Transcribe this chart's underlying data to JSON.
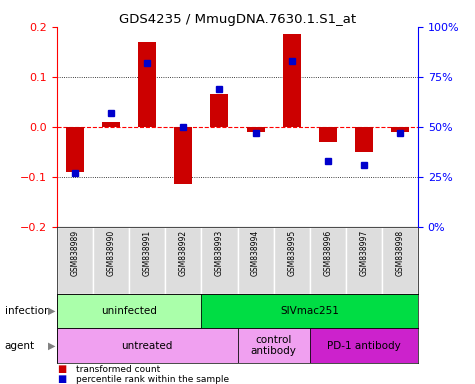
{
  "title": "GDS4235 / MmugDNA.7630.1.S1_at",
  "samples": [
    "GSM838989",
    "GSM838990",
    "GSM838991",
    "GSM838992",
    "GSM838993",
    "GSM838994",
    "GSM838995",
    "GSM838996",
    "GSM838997",
    "GSM838998"
  ],
  "red_values": [
    -0.09,
    0.01,
    0.17,
    -0.115,
    0.065,
    -0.01,
    0.185,
    -0.03,
    -0.05,
    -0.01
  ],
  "blue_values": [
    0.27,
    0.57,
    0.82,
    0.5,
    0.69,
    0.47,
    0.83,
    0.33,
    0.31,
    0.47
  ],
  "ylim_left": [
    -0.2,
    0.2
  ],
  "yticks_left": [
    -0.2,
    -0.1,
    0.0,
    0.1,
    0.2
  ],
  "yticks_right": [
    0.0,
    0.25,
    0.5,
    0.75,
    1.0
  ],
  "ytick_labels_right": [
    "0%",
    "25%",
    "50%",
    "75%",
    "100%"
  ],
  "bar_color": "#cc0000",
  "dot_color": "#0000cc",
  "bg_color": "#ffffff",
  "inf_boxes": [
    {
      "xstart": -0.5,
      "xend": 3.5,
      "text": "uninfected",
      "color": "#aaffaa"
    },
    {
      "xstart": 3.5,
      "xend": 9.5,
      "text": "SIVmac251",
      "color": "#00dd44"
    }
  ],
  "agent_boxes": [
    {
      "xstart": -0.5,
      "xend": 4.5,
      "text": "untreated",
      "color": "#f0a0f0"
    },
    {
      "xstart": 4.5,
      "xend": 6.5,
      "text": "control\nantibody",
      "color": "#f0a0f0"
    },
    {
      "xstart": 6.5,
      "xend": 9.5,
      "text": "PD-1 antibody",
      "color": "#cc22cc"
    }
  ],
  "legend_items": [
    {
      "label": "transformed count",
      "color": "#cc0000"
    },
    {
      "label": "percentile rank within the sample",
      "color": "#0000cc"
    }
  ],
  "infection_row_label": "infection",
  "agent_row_label": "agent"
}
